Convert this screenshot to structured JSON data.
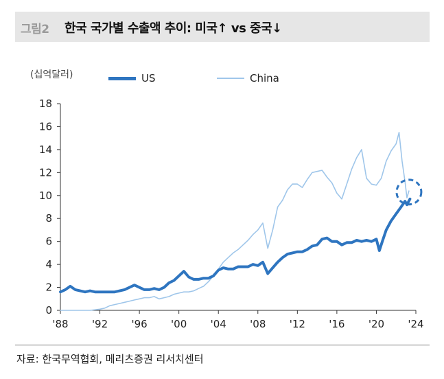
{
  "header": {
    "figure_label": "그림2",
    "title": "한국 국가별 수출액 추이: 미국↑ vs 중국↓"
  },
  "source": "자료: 한국무역협회, 메리츠증권 리서치센터",
  "colors": {
    "us": "#2e75c0",
    "china": "#9fc6ea",
    "highlight": "#2e75c0"
  },
  "chart_data": {
    "type": "line",
    "unit_label": "(십억달러)",
    "ylim": [
      0,
      18
    ],
    "y_ticks": [
      "0",
      "2",
      "4",
      "6",
      "8",
      "10",
      "12",
      "14",
      "16",
      "18"
    ],
    "x_ticks": [
      "'88",
      "'92",
      "'96",
      "'00",
      "'04",
      "'08",
      "'12",
      "'16",
      "'20",
      "'24"
    ],
    "xlim": [
      1988,
      2024
    ],
    "grid": false,
    "legend": "top",
    "highlight_circle": {
      "x": 2023.3,
      "y": 10.3
    },
    "series": [
      {
        "name": "US",
        "points": [
          [
            1988,
            1.6
          ],
          [
            1988.5,
            1.8
          ],
          [
            1989,
            2.1
          ],
          [
            1989.5,
            1.8
          ],
          [
            1990,
            1.7
          ],
          [
            1990.5,
            1.6
          ],
          [
            1991,
            1.7
          ],
          [
            1991.5,
            1.6
          ],
          [
            1992,
            1.6
          ],
          [
            1992.5,
            1.6
          ],
          [
            1993,
            1.6
          ],
          [
            1993.5,
            1.6
          ],
          [
            1994,
            1.7
          ],
          [
            1994.5,
            1.8
          ],
          [
            1995,
            2.0
          ],
          [
            1995.5,
            2.2
          ],
          [
            1996,
            2.0
          ],
          [
            1996.5,
            1.8
          ],
          [
            1997,
            1.8
          ],
          [
            1997.5,
            1.9
          ],
          [
            1998,
            1.8
          ],
          [
            1998.5,
            2.0
          ],
          [
            1999,
            2.4
          ],
          [
            1999.5,
            2.6
          ],
          [
            2000,
            3.0
          ],
          [
            2000.5,
            3.4
          ],
          [
            2001,
            2.9
          ],
          [
            2001.5,
            2.7
          ],
          [
            2002,
            2.7
          ],
          [
            2002.5,
            2.8
          ],
          [
            2003,
            2.8
          ],
          [
            2003.5,
            3.0
          ],
          [
            2004,
            3.5
          ],
          [
            2004.5,
            3.7
          ],
          [
            2005,
            3.6
          ],
          [
            2005.5,
            3.6
          ],
          [
            2006,
            3.8
          ],
          [
            2006.5,
            3.8
          ],
          [
            2007,
            3.8
          ],
          [
            2007.5,
            4.0
          ],
          [
            2008,
            3.9
          ],
          [
            2008.5,
            4.2
          ],
          [
            2009,
            3.2
          ],
          [
            2009.5,
            3.7
          ],
          [
            2010,
            4.2
          ],
          [
            2010.5,
            4.6
          ],
          [
            2011,
            4.9
          ],
          [
            2011.5,
            5.0
          ],
          [
            2012,
            5.1
          ],
          [
            2012.5,
            5.1
          ],
          [
            2013,
            5.3
          ],
          [
            2013.5,
            5.6
          ],
          [
            2014,
            5.7
          ],
          [
            2014.5,
            6.2
          ],
          [
            2015,
            6.3
          ],
          [
            2015.5,
            6.0
          ],
          [
            2016,
            6.0
          ],
          [
            2016.5,
            5.7
          ],
          [
            2017,
            5.9
          ],
          [
            2017.5,
            5.9
          ],
          [
            2018,
            6.1
          ],
          [
            2018.5,
            6.0
          ],
          [
            2019,
            6.1
          ],
          [
            2019.5,
            6.0
          ],
          [
            2020,
            6.2
          ],
          [
            2020.3,
            5.2
          ],
          [
            2020.6,
            6.0
          ],
          [
            2021,
            7.0
          ],
          [
            2021.5,
            7.8
          ],
          [
            2022,
            8.4
          ],
          [
            2022.5,
            9.0
          ],
          [
            2022.9,
            9.5
          ],
          [
            2023.1,
            9.2
          ],
          [
            2023.4,
            9.7
          ]
        ]
      },
      {
        "name": "China",
        "points": [
          [
            1988,
            0.0
          ],
          [
            1989,
            0.0
          ],
          [
            1990,
            0.0
          ],
          [
            1991,
            0.0
          ],
          [
            1992,
            0.1
          ],
          [
            1992.5,
            0.2
          ],
          [
            1993,
            0.4
          ],
          [
            1993.5,
            0.5
          ],
          [
            1994,
            0.6
          ],
          [
            1994.5,
            0.7
          ],
          [
            1995,
            0.8
          ],
          [
            1995.5,
            0.9
          ],
          [
            1996,
            1.0
          ],
          [
            1996.5,
            1.1
          ],
          [
            1997,
            1.1
          ],
          [
            1997.5,
            1.2
          ],
          [
            1998,
            1.0
          ],
          [
            1998.5,
            1.1
          ],
          [
            1999,
            1.2
          ],
          [
            1999.5,
            1.4
          ],
          [
            2000,
            1.5
          ],
          [
            2000.5,
            1.6
          ],
          [
            2001,
            1.6
          ],
          [
            2001.5,
            1.7
          ],
          [
            2002,
            1.9
          ],
          [
            2002.5,
            2.1
          ],
          [
            2003,
            2.5
          ],
          [
            2003.5,
            3.0
          ],
          [
            2004,
            3.6
          ],
          [
            2004.5,
            4.2
          ],
          [
            2005,
            4.6
          ],
          [
            2005.5,
            5.0
          ],
          [
            2006,
            5.3
          ],
          [
            2006.5,
            5.7
          ],
          [
            2007,
            6.1
          ],
          [
            2007.5,
            6.6
          ],
          [
            2008,
            7.0
          ],
          [
            2008.5,
            7.6
          ],
          [
            2009,
            5.4
          ],
          [
            2009.5,
            7.0
          ],
          [
            2010,
            9.0
          ],
          [
            2010.5,
            9.6
          ],
          [
            2011,
            10.5
          ],
          [
            2011.5,
            11.0
          ],
          [
            2012,
            11.0
          ],
          [
            2012.5,
            10.7
          ],
          [
            2013,
            11.4
          ],
          [
            2013.5,
            12.0
          ],
          [
            2014,
            12.1
          ],
          [
            2014.5,
            12.2
          ],
          [
            2015,
            11.6
          ],
          [
            2015.5,
            11.1
          ],
          [
            2016,
            10.2
          ],
          [
            2016.5,
            9.7
          ],
          [
            2017,
            11.0
          ],
          [
            2017.5,
            12.3
          ],
          [
            2018,
            13.3
          ],
          [
            2018.5,
            14.0
          ],
          [
            2019,
            11.5
          ],
          [
            2019.5,
            11.0
          ],
          [
            2020,
            10.9
          ],
          [
            2020.5,
            11.5
          ],
          [
            2021,
            13.0
          ],
          [
            2021.5,
            13.9
          ],
          [
            2022,
            14.5
          ],
          [
            2022.3,
            15.5
          ],
          [
            2022.6,
            13.0
          ],
          [
            2022.9,
            11.2
          ],
          [
            2023.1,
            9.8
          ],
          [
            2023.3,
            10.4
          ]
        ]
      }
    ]
  }
}
